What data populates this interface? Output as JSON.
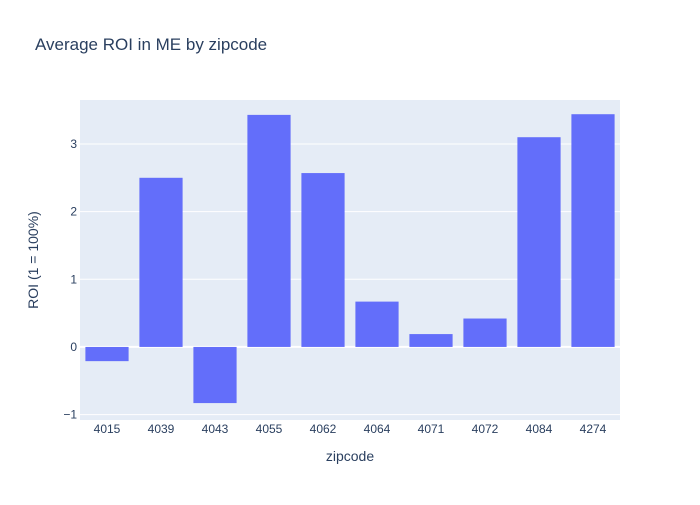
{
  "chart_data": {
    "type": "bar",
    "title": "Average ROI in ME by zipcode",
    "xlabel": "zipcode",
    "ylabel": "ROI (1 = 100%)",
    "categories": [
      "4015",
      "4039",
      "4043",
      "4055",
      "4062",
      "4064",
      "4071",
      "4072",
      "4084",
      "4274"
    ],
    "values": [
      -0.21,
      2.5,
      -0.83,
      3.43,
      2.57,
      0.67,
      0.19,
      0.42,
      3.1,
      3.44
    ],
    "ylim": [
      -1.08,
      3.65
    ],
    "yticks": [
      -1,
      0,
      1,
      2,
      3
    ],
    "ytick_labels": [
      "−1",
      "0",
      "1",
      "2",
      "3"
    ],
    "grid": true,
    "legend": "none",
    "colors": {
      "bar": "#636efa",
      "plot_bg": "#e5ecf6",
      "grid": "#ffffff",
      "text": "#2a3f5f"
    }
  }
}
